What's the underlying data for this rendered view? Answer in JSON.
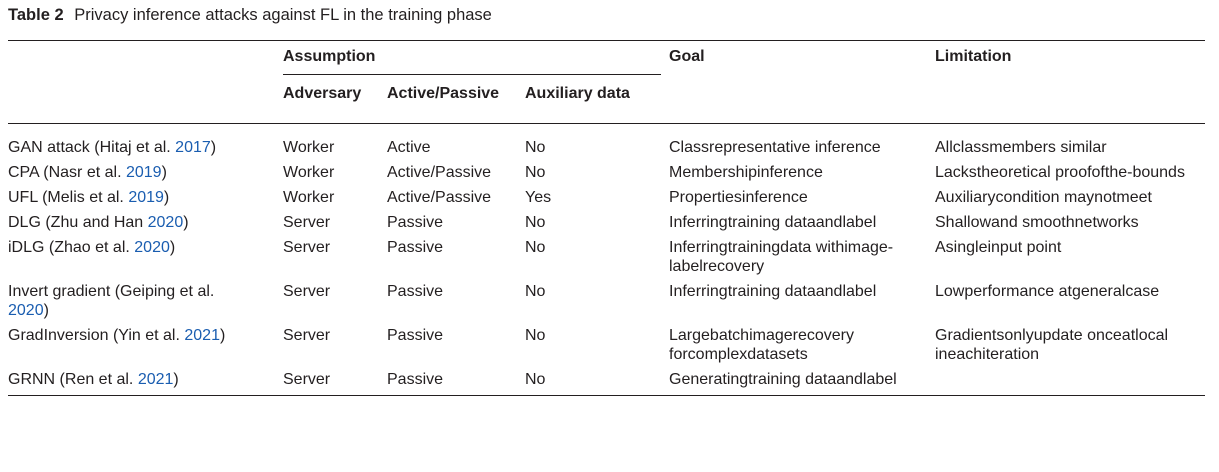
{
  "caption": {
    "label": "Table 2",
    "text": "Privacy inference attacks against FL in the training phase"
  },
  "header": {
    "assumption": "Assumption",
    "goal": "Goal",
    "limitation": "Limitation",
    "adversary": "Adversary",
    "active_passive": "Active/Passive",
    "auxiliary_data": "Auxiliary data"
  },
  "rows": [
    {
      "method": "GAN attack (Hitaj et al. ",
      "year": "2017",
      "close": ")",
      "adversary": "Worker",
      "mode": "Active",
      "aux": "No",
      "goal": "Classrepresentative inference",
      "limitation": "Allclassmembers similar"
    },
    {
      "method": "CPA (Nasr et al. ",
      "year": "2019",
      "close": ")",
      "adversary": "Worker",
      "mode": "Active/Passive",
      "aux": "No",
      "goal": "Membershipinference",
      "limitation": "Lackstheoretical proofofthe-bounds"
    },
    {
      "method": "UFL (Melis et al. ",
      "year": "2019",
      "close": ")",
      "adversary": "Worker",
      "mode": "Active/Passive",
      "aux": "Yes",
      "goal": "Propertiesinference",
      "limitation": "Auxiliarycondition maynotmeet"
    },
    {
      "method": "DLG (Zhu and Han ",
      "year": "2020",
      "close": ")",
      "adversary": "Server",
      "mode": "Passive",
      "aux": "No",
      "goal": "Inferringtraining dataandlabel",
      "limitation": "Shallowand smoothnetworks"
    },
    {
      "method": "iDLG (Zhao et al. ",
      "year": "2020",
      "close": ")",
      "adversary": "Server",
      "mode": "Passive",
      "aux": "No",
      "goal": "Inferringtrainingdata withimage-labelrecovery",
      "limitation": "Asingleinput point"
    },
    {
      "method": "Invert gradient (Geiping et al. ",
      "year": "2020",
      "close": ")",
      "adversary": "Server",
      "mode": "Passive",
      "aux": "No",
      "goal": "Inferringtraining dataandlabel",
      "limitation": "Lowperformance atgeneralcase"
    },
    {
      "method": "GradInversion (Yin et al. ",
      "year": "2021",
      "close": ")",
      "adversary": "Server",
      "mode": "Passive",
      "aux": "No",
      "goal": "Largebatchimagerecovery forcomplexdatasets",
      "limitation": "Gradientsonlyupdate onceatlocal ineachiteration"
    },
    {
      "method": "GRNN (Ren et al. ",
      "year": "2021",
      "close": ")",
      "adversary": "Server",
      "mode": "Passive",
      "aux": "No",
      "goal": "Generatingtraining dataandlabel",
      "limitation": ""
    }
  ]
}
